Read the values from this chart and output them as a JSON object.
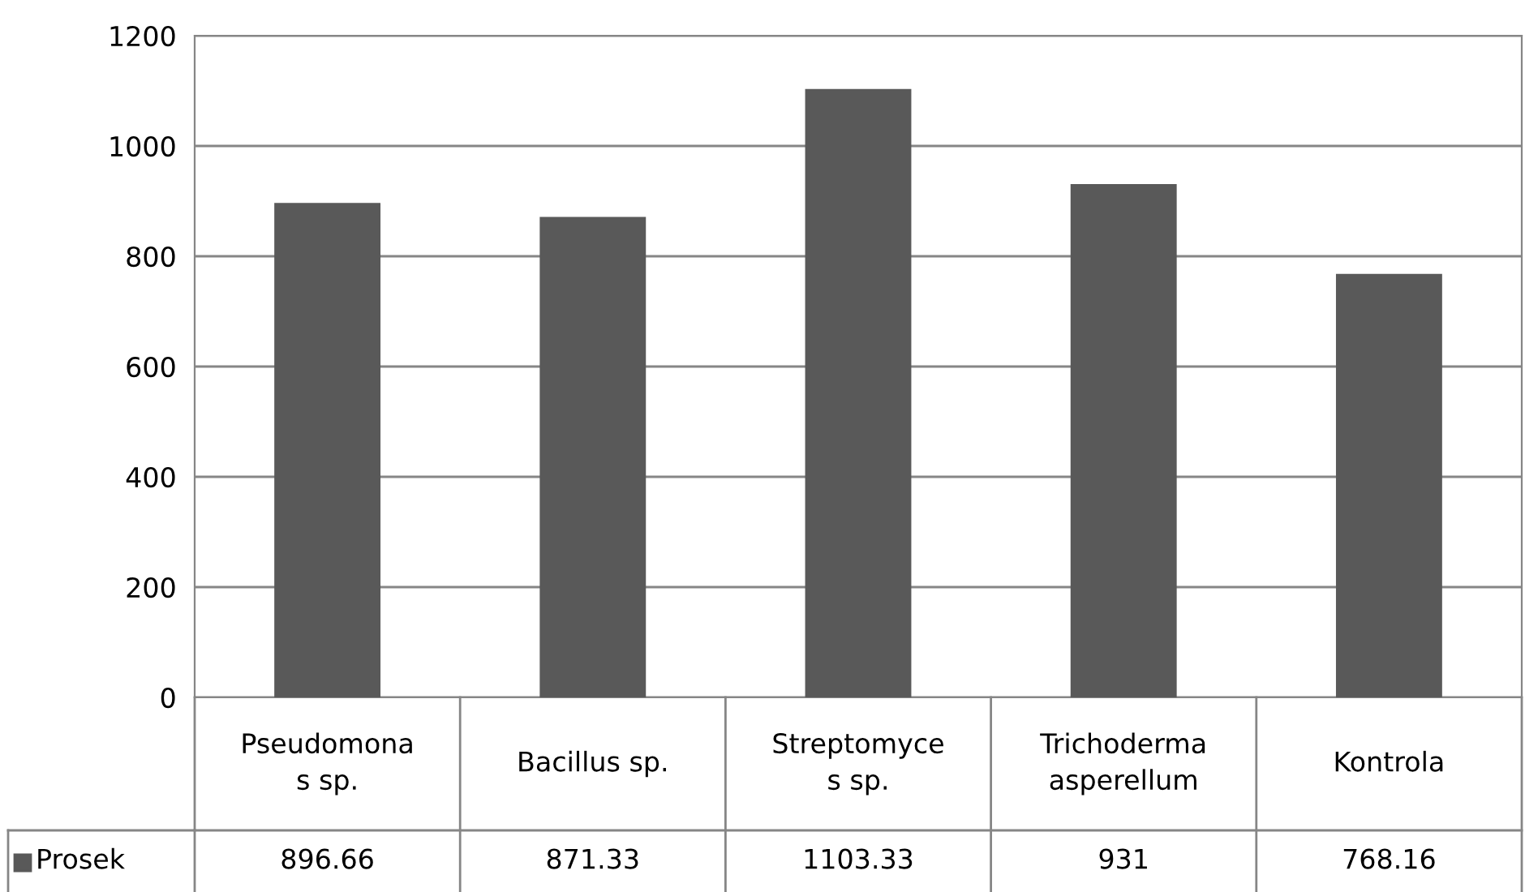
{
  "chart_data": {
    "type": "bar",
    "categories": [
      "Pseudomona\ns sp.",
      "Bacillus sp.",
      "Streptomyce\ns sp.",
      "Trichoderma\nasperellum",
      "Kontrola"
    ],
    "series": [
      {
        "name": "Prosek",
        "color": "#595959",
        "values": [
          896.66,
          871.33,
          1103.33,
          931,
          768.16
        ]
      }
    ],
    "ylim": [
      0,
      1200
    ],
    "yticks": [
      0,
      200,
      400,
      600,
      800,
      1000,
      1200
    ],
    "grid": "y",
    "data_labels": true
  }
}
